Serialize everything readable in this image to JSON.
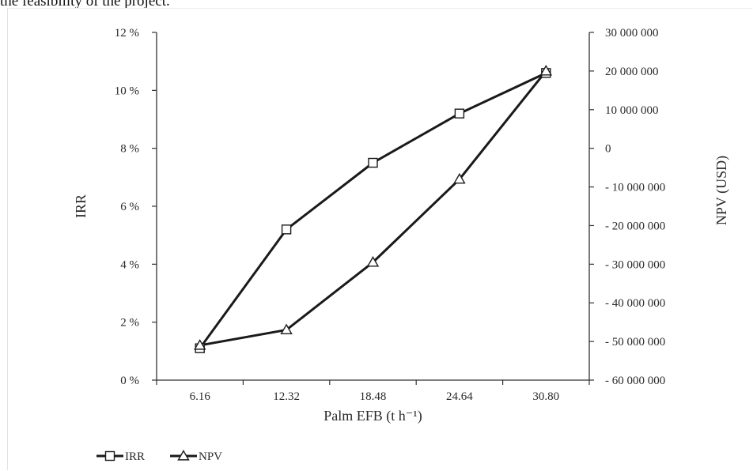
{
  "page": {
    "caption_fragment": "the feasibility of the project."
  },
  "chart_data": {
    "type": "line",
    "title": "",
    "xlabel": "Palm EFB (t h⁻¹)",
    "ylabel_left": "IRR",
    "ylabel_right": "NPV (USD)",
    "categories": [
      "6.16",
      "12.32",
      "18.48",
      "24.64",
      "30.80"
    ],
    "left_axis": {
      "range": [
        0,
        12
      ],
      "ticks": [
        0,
        2,
        4,
        6,
        8,
        10,
        12
      ],
      "tick_labels": [
        "0 %",
        "2 %",
        "4 %",
        "6 %",
        "8 %",
        "10 %",
        "12 %"
      ]
    },
    "right_axis": {
      "range": [
        -60000000,
        30000000
      ],
      "ticks": [
        -60000000,
        -50000000,
        -40000000,
        -30000000,
        -20000000,
        -10000000,
        0,
        10000000,
        20000000,
        30000000
      ],
      "tick_labels": [
        "- 60 000 000",
        "- 50 000 000",
        "- 40 000 000",
        "- 30 000 000",
        "- 20 000 000",
        "- 10 000 000",
        "0",
        "10 000 000",
        "20 000 000",
        "30 000 000"
      ]
    },
    "series": [
      {
        "name": "IRR",
        "axis": "left",
        "marker": "square",
        "values": [
          1.1,
          5.2,
          7.5,
          9.2,
          10.6
        ]
      },
      {
        "name": "NPV",
        "axis": "right",
        "marker": "triangle",
        "values": [
          -51000000,
          -47000000,
          -29500000,
          -8000000,
          20000000
        ]
      }
    ],
    "grid": false,
    "legend_position": "bottom-left",
    "colors": {
      "line": "#1a1a1a",
      "axis": "#333333",
      "text": "#2a2a2a"
    }
  }
}
